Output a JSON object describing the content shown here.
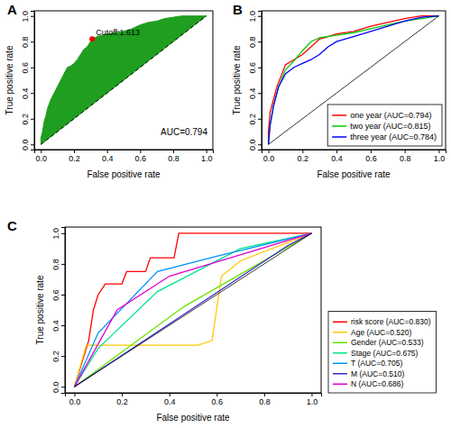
{
  "chart_data": [
    {
      "type": "area",
      "title": "A",
      "x_label": "False positive rate",
      "y_label": "True positive rate",
      "xlim": [
        -0.04,
        1.04
      ],
      "ylim": [
        -0.04,
        1.04
      ],
      "xticks": [
        {
          "value": 0,
          "label": "0.0"
        },
        0.2,
        0.4,
        0.6,
        0.8,
        {
          "value": 1,
          "label": "1.0"
        }
      ],
      "yticks": [
        {
          "value": 0,
          "label": "0.0"
        },
        0.2,
        0.4,
        0.6,
        0.8,
        {
          "value": 1,
          "label": "1.0"
        }
      ],
      "series": [
        {
          "color": "#1f9e1f",
          "x": [
            0,
            0,
            0.01,
            0.02,
            0.03,
            0.04,
            0.06,
            0.08,
            0.1,
            0.12,
            0.14,
            0.16,
            0.18,
            0.2,
            0.22,
            0.24,
            0.26,
            0.28,
            0.3,
            0.31,
            0.34,
            0.4,
            0.45,
            0.5,
            0.55,
            0.6,
            0.65,
            0.7,
            0.75,
            0.8,
            0.85,
            1
          ],
          "values": [
            0,
            0.05,
            0.1,
            0.18,
            0.22,
            0.28,
            0.35,
            0.4,
            0.45,
            0.5,
            0.55,
            0.6,
            0.61,
            0.63,
            0.66,
            0.7,
            0.74,
            0.76,
            0.8,
            0.82,
            0.84,
            0.86,
            0.87,
            0.88,
            0.9,
            0.93,
            0.95,
            0.96,
            0.98,
            0.99,
            1,
            1
          ]
        }
      ],
      "annotations": [
        {
          "text": "Cutoff:1.613",
          "x": 0.31,
          "y": 0.82,
          "color": "red"
        },
        {
          "text": "AUC=0.794"
        }
      ]
    },
    {
      "type": "line",
      "title": "B",
      "x_label": "False positive rate",
      "y_label": "True positive rate",
      "xlim": [
        -0.04,
        1.04
      ],
      "ylim": [
        -0.04,
        1.04
      ],
      "xticks": [
        {
          "value": 0,
          "label": "0.0"
        },
        0.2,
        0.4,
        0.6,
        0.8,
        {
          "value": 1,
          "label": "1.0"
        }
      ],
      "yticks": [
        {
          "value": 0,
          "label": "0.0"
        },
        0.2,
        0.4,
        0.6,
        0.8,
        {
          "value": 1,
          "label": "1.0"
        }
      ],
      "legend": "bottom-right",
      "series": [
        {
          "name": "one year (AUC=0.794)",
          "color": "#ff0000",
          "x": [
            0,
            0,
            0.01,
            0.03,
            0.05,
            0.08,
            0.1,
            0.15,
            0.2,
            0.25,
            0.3,
            0.35,
            0.4,
            0.5,
            0.6,
            0.7,
            0.8,
            0.9,
            1
          ],
          "values": [
            0,
            0.1,
            0.25,
            0.35,
            0.45,
            0.55,
            0.62,
            0.66,
            0.7,
            0.76,
            0.82,
            0.84,
            0.86,
            0.88,
            0.92,
            0.95,
            0.98,
            1,
            1
          ]
        },
        {
          "name": "two year (AUC=0.815)",
          "color": "#00cc00",
          "x": [
            0,
            0.01,
            0.03,
            0.06,
            0.1,
            0.15,
            0.2,
            0.25,
            0.3,
            0.4,
            0.5,
            0.6,
            0.7,
            0.8,
            0.9,
            1
          ],
          "values": [
            0,
            0.15,
            0.3,
            0.45,
            0.58,
            0.65,
            0.73,
            0.8,
            0.83,
            0.85,
            0.87,
            0.9,
            0.93,
            0.96,
            0.98,
            1
          ]
        },
        {
          "name": "three year (AUC=0.784)",
          "color": "#0000ff",
          "x": [
            0,
            0.01,
            0.03,
            0.06,
            0.1,
            0.15,
            0.2,
            0.25,
            0.3,
            0.35,
            0.4,
            0.5,
            0.6,
            0.7,
            0.8,
            0.9,
            1
          ],
          "values": [
            0,
            0.15,
            0.3,
            0.45,
            0.55,
            0.6,
            0.63,
            0.66,
            0.7,
            0.76,
            0.8,
            0.84,
            0.88,
            0.92,
            0.96,
            0.99,
            1
          ]
        }
      ]
    },
    {
      "type": "line",
      "title": "C",
      "x_label": "False positive rate",
      "y_label": "True positive rate",
      "xlim": [
        -0.04,
        1.04
      ],
      "ylim": [
        -0.04,
        1.04
      ],
      "xticks": [
        {
          "value": 0,
          "label": "0.0"
        },
        0.2,
        0.4,
        0.6,
        0.8,
        {
          "value": 1,
          "label": "1.0"
        }
      ],
      "yticks": [
        {
          "value": 0,
          "label": "0.0"
        },
        0.2,
        0.4,
        0.6,
        0.8,
        {
          "value": 1,
          "label": "1.0"
        }
      ],
      "legend": "right",
      "series": [
        {
          "name": "risk score (AUC=0.830)",
          "color": "#ff0000",
          "x": [
            0,
            0.02,
            0.04,
            0.06,
            0.08,
            0.1,
            0.13,
            0.2,
            0.22,
            0.3,
            0.32,
            0.42,
            0.44,
            1
          ],
          "values": [
            0,
            0.1,
            0.2,
            0.3,
            0.5,
            0.6,
            0.67,
            0.67,
            0.75,
            0.75,
            0.84,
            0.84,
            1,
            1
          ]
        },
        {
          "name": "Age (AUC=0.520)",
          "color": "#ffc800",
          "x": [
            0,
            0.05,
            0.52,
            0.58,
            0.62,
            0.7,
            1
          ],
          "values": [
            0,
            0.27,
            0.27,
            0.3,
            0.72,
            0.82,
            1
          ]
        },
        {
          "name": "Gender (AUC=0.533)",
          "color": "#66e600",
          "x": [
            0,
            0.46,
            1
          ],
          "values": [
            0,
            0.52,
            1
          ]
        },
        {
          "name": "Stage (AUC=0.675)",
          "color": "#00e68c",
          "x": [
            0,
            0.1,
            0.35,
            0.7,
            1
          ],
          "values": [
            0,
            0.25,
            0.62,
            0.9,
            1
          ]
        },
        {
          "name": "T (AUC=0.705)",
          "color": "#0092ff",
          "x": [
            0,
            0.1,
            0.35,
            0.6,
            1
          ],
          "values": [
            0,
            0.35,
            0.75,
            0.85,
            1
          ]
        },
        {
          "name": "M (AUC=0.510)",
          "color": "#3a2ad0",
          "x": [
            0,
            0.9,
            1
          ],
          "values": [
            0,
            0.92,
            1
          ]
        },
        {
          "name": "N (AUC=0.686)",
          "color": "#e000d0",
          "x": [
            0,
            0.18,
            0.4,
            1
          ],
          "values": [
            0,
            0.5,
            0.72,
            1
          ]
        }
      ]
    }
  ]
}
